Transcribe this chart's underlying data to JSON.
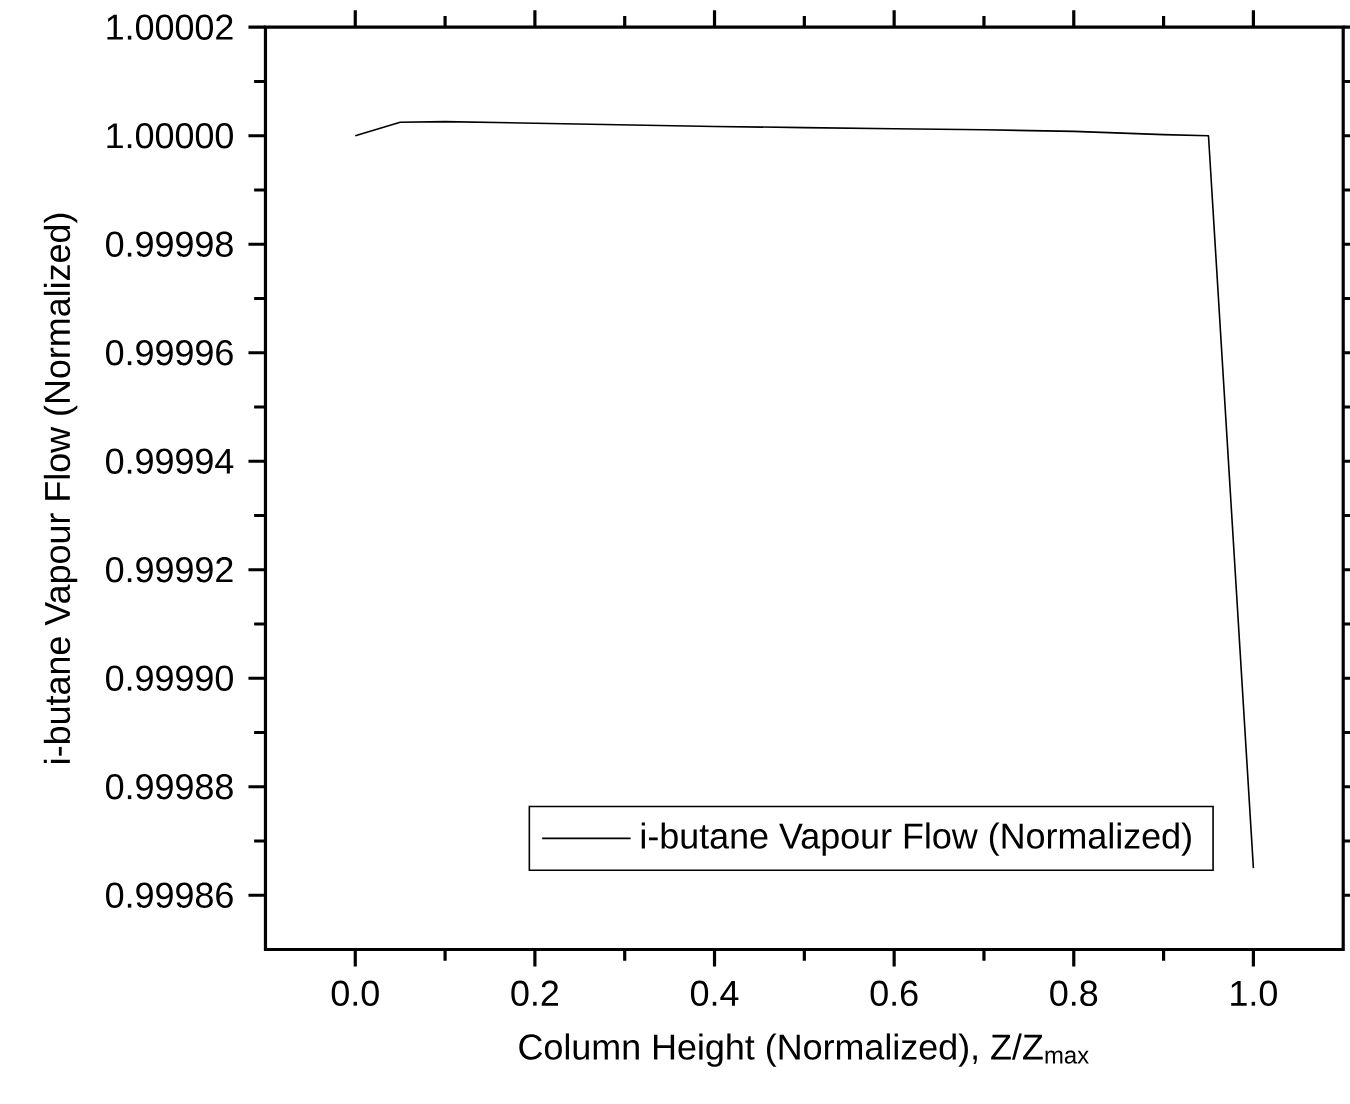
{
  "chart_data": {
    "type": "line",
    "xlabel": "Column Height (Normalized), Z/Z$_{max}$",
    "ylabel": "i-butane Vapour Flow (Normalized)",
    "x": [
      0.0,
      0.05,
      0.1,
      0.2,
      0.3,
      0.4,
      0.5,
      0.6,
      0.7,
      0.8,
      0.9,
      0.95,
      1.0
    ],
    "series": [
      {
        "name": "i-butane Vapour Flow (Normalized)",
        "color": "#000000",
        "values": [
          1.0,
          1.0000025,
          1.0000026,
          1.0000023,
          1.000002,
          1.0000017,
          1.0000015,
          1.0000013,
          1.0000011,
          1.0000008,
          1.0000002,
          1.0,
          0.999865
        ]
      }
    ],
    "xlim": [
      -0.1,
      1.1
    ],
    "ylim": [
      0.99985,
      1.00002
    ],
    "xticks": [
      {
        "value": 0,
        "label": "0.0"
      },
      0.2,
      0.4,
      0.6,
      0.8,
      {
        "value": 1,
        "label": "1.0"
      }
    ],
    "yticks": [
      0.99986,
      0.99988,
      {
        "value": 0.9999,
        "label": "0.99990"
      },
      0.99992,
      0.99994,
      0.99996,
      0.99998,
      {
        "value": 1,
        "label": "1.00000"
      },
      1.00002
    ],
    "grid": false,
    "legend": "bottom right",
    "marker": "none",
    "line_style": "solid"
  }
}
